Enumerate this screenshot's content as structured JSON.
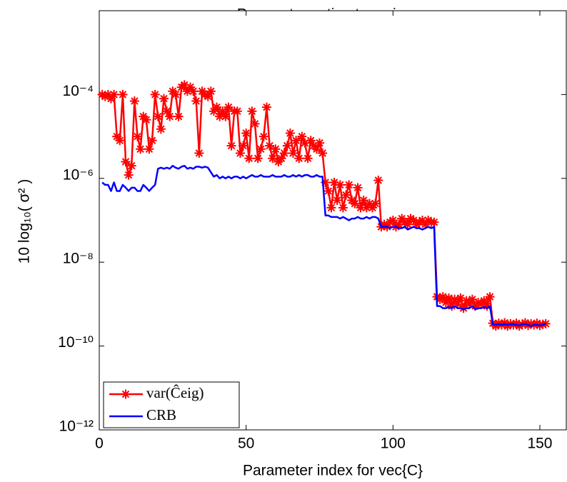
{
  "chart_data": {
    "type": "line",
    "title": "Parameter estimate variance",
    "xlabel": "Parameter index for vec{C}",
    "ylabel": "10 log₁₀( σ² )",
    "yscale": "log",
    "legend": "lower left",
    "xlim": [
      0,
      159
    ],
    "xticks": [
      0,
      50,
      100,
      150
    ],
    "ylim": [
      1e-12,
      0.01
    ],
    "yticks": [
      {
        "value": 1e-12,
        "label": "10⁻¹²"
      },
      {
        "value": 1e-10,
        "label": "10⁻¹⁰"
      },
      {
        "value": 1e-08,
        "label": "10⁻⁸"
      },
      {
        "value": 1e-06,
        "label": "10⁻⁶"
      },
      {
        "value": 0.0001,
        "label": "10⁻⁴"
      }
    ],
    "x": [
      1,
      2,
      3,
      4,
      5,
      6,
      7,
      8,
      9,
      10,
      11,
      12,
      13,
      14,
      15,
      16,
      17,
      18,
      19,
      20,
      21,
      22,
      23,
      24,
      25,
      26,
      27,
      28,
      29,
      30,
      31,
      32,
      33,
      34,
      35,
      36,
      37,
      38,
      39,
      40,
      41,
      42,
      43,
      44,
      45,
      46,
      47,
      48,
      49,
      50,
      51,
      52,
      53,
      54,
      55,
      56,
      57,
      58,
      59,
      60,
      61,
      62,
      63,
      64,
      65,
      66,
      67,
      68,
      69,
      70,
      71,
      72,
      73,
      74,
      75,
      76,
      77,
      78,
      79,
      80,
      81,
      82,
      83,
      84,
      85,
      86,
      87,
      88,
      89,
      90,
      91,
      92,
      93,
      94,
      95,
      96,
      97,
      98,
      99,
      100,
      101,
      102,
      103,
      104,
      105,
      106,
      107,
      108,
      109,
      110,
      111,
      112,
      113,
      114,
      115,
      116,
      117,
      118,
      119,
      120,
      121,
      122,
      123,
      124,
      125,
      126,
      127,
      128,
      129,
      130,
      131,
      132,
      133,
      134,
      135,
      136,
      137,
      138,
      139,
      140,
      141,
      142,
      143,
      144,
      145,
      146,
      147,
      148,
      149,
      150,
      151,
      152
    ],
    "series": [
      {
        "name": "var(Ĉeig)",
        "color": "#ff0000",
        "marker": "asterisk",
        "values": [
          0.0001,
          9e-05,
          0.0001,
          8e-05,
          0.0001,
          1e-05,
          8e-06,
          0.0001,
          2.5e-06,
          1.2e-06,
          2e-06,
          7e-05,
          1e-05,
          5e-06,
          3e-05,
          2.5e-05,
          5e-06,
          8e-06,
          0.0001,
          3e-05,
          1.5e-05,
          8e-05,
          4e-05,
          3e-05,
          0.00012,
          0.0001,
          3e-05,
          0.00015,
          0.00017,
          0.00012,
          0.00015,
          0.00012,
          7e-05,
          4e-06,
          0.00012,
          0.0001,
          9e-05,
          0.00012,
          4e-05,
          5e-05,
          3e-05,
          4e-05,
          3e-05,
          5e-05,
          6e-06,
          4e-05,
          4e-05,
          4e-06,
          6e-06,
          1.2e-05,
          3e-06,
          4e-05,
          2e-05,
          3e-06,
          5e-06,
          1e-05,
          5e-05,
          6e-06,
          3e-06,
          5e-06,
          2.5e-06,
          3e-06,
          4e-06,
          6e-06,
          1.2e-05,
          4e-06,
          8e-06,
          3e-06,
          1e-05,
          7e-06,
          3e-06,
          8e-06,
          6e-06,
          5e-06,
          7e-06,
          4e-06,
          8e-07,
          5e-07,
          2e-07,
          8e-07,
          3e-07,
          7e-07,
          2e-07,
          4e-07,
          7e-07,
          3e-07,
          2.5e-07,
          6e-07,
          2e-07,
          3e-07,
          2e-07,
          2.5e-07,
          2e-07,
          2.5e-07,
          9e-07,
          7e-08,
          8e-08,
          7e-08,
          9e-08,
          1e-07,
          7e-08,
          8e-08,
          1.1e-07,
          9e-08,
          8e-08,
          1.1e-07,
          1e-07,
          8e-08,
          9e-08,
          1e-07,
          8e-08,
          1e-07,
          9e-08,
          9e-08,
          1.5e-09,
          1.3e-09,
          1.5e-09,
          1.1e-09,
          1.4e-09,
          9e-10,
          1.3e-09,
          1e-09,
          1.4e-09,
          8e-10,
          1.2e-09,
          1e-09,
          1.3e-09,
          9e-10,
          1.1e-09,
          1e-09,
          1.2e-09,
          9e-10,
          1.5e-09,
          3.5e-10,
          3e-10,
          3.5e-10,
          3.2e-10,
          3.6e-10,
          3e-10,
          3.4e-10,
          3.2e-10,
          3.5e-10,
          3e-10,
          3.3e-10,
          3.6e-10,
          3.1e-10,
          3.4e-10,
          3.2e-10,
          3.5e-10,
          3.1e-10,
          3.3e-10,
          3.4e-10
        ]
      },
      {
        "name": "CRB",
        "color": "#0000ff",
        "values": [
          8e-07,
          7e-07,
          7e-07,
          5e-07,
          8e-07,
          5e-07,
          5e-07,
          7e-07,
          6e-07,
          5e-07,
          6e-07,
          6e-07,
          5e-07,
          5e-07,
          7e-07,
          6e-07,
          5e-07,
          6e-07,
          7e-07,
          1.7e-06,
          1.8e-06,
          1.7e-06,
          1.8e-06,
          1.7e-06,
          2e-06,
          1.8e-06,
          1.7e-06,
          1.9e-06,
          2e-06,
          1.7e-06,
          1.8e-06,
          1.7e-06,
          1.9e-06,
          1.9e-06,
          1.8e-06,
          1.9e-06,
          1.8e-06,
          1.4e-06,
          1.1e-06,
          1.2e-06,
          1e-06,
          1.1e-06,
          1e-06,
          1.1e-06,
          1e-06,
          1.1e-06,
          1.1e-06,
          1e-06,
          1.1e-06,
          1e-06,
          1.1e-06,
          1.2e-06,
          1.1e-06,
          1.1e-06,
          1.2e-06,
          1.1e-06,
          1.1e-06,
          1.1e-06,
          1.2e-06,
          1.1e-06,
          1.1e-06,
          1.1e-06,
          1.2e-06,
          1.1e-06,
          1.1e-06,
          1.2e-06,
          1.1e-06,
          1.2e-06,
          1.1e-06,
          1.2e-06,
          1.2e-06,
          1.1e-06,
          1.1e-06,
          1.2e-06,
          1.1e-06,
          1.1e-06,
          1.3e-07,
          1.3e-07,
          1.2e-07,
          1.2e-07,
          1.2e-07,
          1.1e-07,
          1.2e-07,
          1.1e-07,
          1e-07,
          1.1e-07,
          1.1e-07,
          1.2e-07,
          1.1e-07,
          1.1e-07,
          1.2e-07,
          1.1e-07,
          1.2e-07,
          1.2e-07,
          1.1e-07,
          7e-08,
          7e-08,
          7e-08,
          6.5e-08,
          7e-08,
          7e-08,
          6.5e-08,
          6.5e-08,
          7e-08,
          6e-08,
          6.5e-08,
          7e-08,
          6.5e-08,
          6.5e-08,
          6e-08,
          6.5e-08,
          7e-08,
          6.5e-08,
          7e-08,
          9e-10,
          9e-10,
          8e-10,
          8e-10,
          8.5e-10,
          8e-10,
          9e-10,
          8e-10,
          8e-10,
          7.5e-10,
          8e-10,
          8e-10,
          9e-10,
          7.5e-10,
          8e-10,
          8e-10,
          8.5e-10,
          8e-10,
          9e-10,
          3.3e-10,
          3.2e-10,
          3.3e-10,
          3.2e-10,
          3.3e-10,
          3.2e-10,
          3.3e-10,
          3.3e-10,
          3.2e-10,
          3.1e-10,
          3.3e-10,
          3.3e-10,
          3.2e-10,
          3e-10,
          3.2e-10,
          3.2e-10,
          3.1e-10,
          3.2e-10,
          3.4e-10
        ]
      }
    ]
  }
}
